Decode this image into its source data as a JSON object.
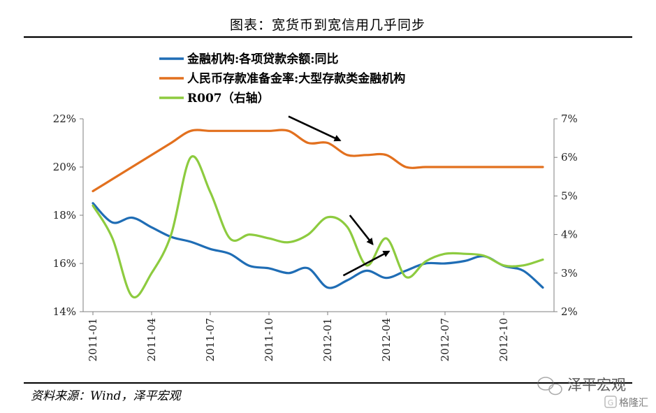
{
  "page_title": "图表：宽货币到宽信用几乎同步",
  "source": "资料来源：Wind，泽平宏观",
  "watermark": {
    "brand": "泽平宏观",
    "sub": "格隆汇"
  },
  "colors": {
    "blue": "#1F6DB5",
    "orange": "#E2701E",
    "green": "#8DCB3F",
    "arrow": "#000000"
  },
  "chart_data": {
    "type": "line",
    "title": "图表：宽货币到宽信用几乎同步",
    "x_ticks": [
      "2011-01",
      "2011-04",
      "2011-07",
      "2011-10",
      "2012-01",
      "2012-04",
      "2012-07",
      "2012-10"
    ],
    "x_range": [
      "2011-01",
      "2012-12"
    ],
    "left_axis": {
      "min": 14,
      "max": 22,
      "ticks": [
        "14%",
        "16%",
        "18%",
        "20%",
        "22%"
      ]
    },
    "right_axis": {
      "min": 2,
      "max": 7,
      "ticks": [
        "2%",
        "3%",
        "4%",
        "5%",
        "6%",
        "7%"
      ]
    },
    "grid": false,
    "legend_position": "top",
    "series": [
      {
        "name": "金融机构:各项贷款余额:同比",
        "axis": "left",
        "color": "#1F6DB5",
        "x": [
          "2011-01",
          "2011-02",
          "2011-03",
          "2011-04",
          "2011-05",
          "2011-06",
          "2011-07",
          "2011-08",
          "2011-09",
          "2011-10",
          "2011-11",
          "2011-12",
          "2012-01",
          "2012-02",
          "2012-03",
          "2012-04",
          "2012-05",
          "2012-06",
          "2012-07",
          "2012-08",
          "2012-09",
          "2012-10",
          "2012-11",
          "2012-12"
        ],
        "values": [
          18.5,
          17.7,
          17.9,
          17.5,
          17.1,
          16.9,
          16.6,
          16.4,
          15.9,
          15.8,
          15.6,
          15.8,
          15.0,
          15.3,
          15.7,
          15.4,
          15.7,
          16.0,
          16.0,
          16.1,
          16.3,
          15.9,
          15.7,
          15.0
        ]
      },
      {
        "name": "人民币存款准备金率:大型存款类金融机构",
        "axis": "left",
        "color": "#E2701E",
        "x": [
          "2011-01",
          "2011-02",
          "2011-03",
          "2011-04",
          "2011-05",
          "2011-06",
          "2011-07",
          "2011-08",
          "2011-09",
          "2011-10",
          "2011-11",
          "2011-12",
          "2012-01",
          "2012-02",
          "2012-03",
          "2012-04",
          "2012-05",
          "2012-06",
          "2012-07",
          "2012-08",
          "2012-09",
          "2012-10",
          "2012-11",
          "2012-12"
        ],
        "values": [
          19.0,
          19.5,
          20.0,
          20.5,
          21.0,
          21.5,
          21.5,
          21.5,
          21.5,
          21.5,
          21.5,
          21.0,
          21.0,
          20.5,
          20.5,
          20.5,
          20.0,
          20.0,
          20.0,
          20.0,
          20.0,
          20.0,
          20.0,
          20.0
        ]
      },
      {
        "name": "R007（右轴）",
        "axis": "right",
        "color": "#8DCB3F",
        "x": [
          "2011-01",
          "2011-02",
          "2011-03",
          "2011-04",
          "2011-05",
          "2011-06",
          "2011-07",
          "2011-08",
          "2011-09",
          "2011-10",
          "2011-11",
          "2011-12",
          "2012-01",
          "2012-02",
          "2012-03",
          "2012-04",
          "2012-05",
          "2012-06",
          "2012-07",
          "2012-08",
          "2012-09",
          "2012-10",
          "2012-11",
          "2012-12"
        ],
        "values": [
          4.75,
          3.9,
          2.4,
          3.0,
          4.0,
          6.0,
          5.1,
          3.9,
          4.0,
          3.9,
          3.8,
          4.0,
          4.45,
          4.2,
          3.2,
          3.9,
          2.9,
          3.3,
          3.5,
          3.5,
          3.45,
          3.2,
          3.2,
          3.35
        ]
      }
    ],
    "annotations": [
      {
        "type": "arrow",
        "from": [
          "2011-11",
          22.1
        ],
        "to": [
          "2012-01-20",
          21.1
        ]
      },
      {
        "type": "arrow",
        "from": [
          "2012-02-05",
          18.0
        ],
        "to": [
          "2012-03-10",
          16.8
        ]
      },
      {
        "type": "arrow",
        "from": [
          "2012-01-25",
          15.5
        ],
        "to": [
          "2012-04-05",
          16.5
        ]
      }
    ]
  }
}
